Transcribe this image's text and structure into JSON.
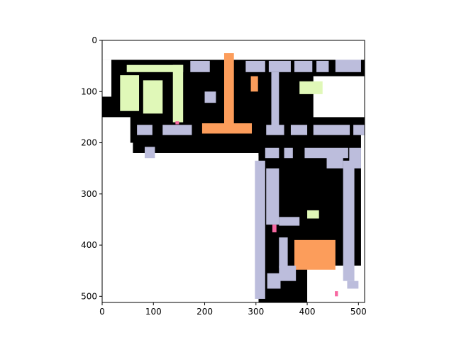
{
  "chart_data": {
    "type": "heatmap",
    "title": "",
    "xlabel": "",
    "ylabel": "",
    "xlim": [
      0,
      512
    ],
    "ylim": [
      512,
      0
    ],
    "xticks": [
      0,
      100,
      200,
      300,
      400,
      500
    ],
    "yticks": [
      0,
      100,
      200,
      300,
      400,
      500
    ],
    "xtick_labels": [
      "0",
      "100",
      "200",
      "300",
      "400",
      "500"
    ],
    "ytick_labels": [
      "0",
      "100",
      "200",
      "300",
      "400",
      "500"
    ],
    "grid": false,
    "legend": "none",
    "colors": {
      "background": "#ffffff",
      "free_space": "#000000",
      "lavender": "#bcbddc",
      "orange": "#fc9d5b",
      "light_green": "#e0f8b8",
      "pink": "#f768a1"
    },
    "regions": [
      {
        "kind": "free_space",
        "x0": 0,
        "y0": 28,
        "x1": 512,
        "y1": 200
      },
      {
        "kind": "free_space",
        "x0": 60,
        "y0": 180,
        "x1": 310,
        "y1": 225
      },
      {
        "kind": "free_space",
        "x0": 305,
        "y0": 180,
        "x1": 512,
        "y1": 512
      },
      {
        "kind": "white",
        "x0": 0,
        "y0": 0,
        "x1": 512,
        "y1": 38
      },
      {
        "kind": "white",
        "x0": 0,
        "y0": 38,
        "x1": 18,
        "y1": 110
      },
      {
        "kind": "white",
        "x0": 0,
        "y0": 150,
        "x1": 55,
        "y1": 512
      },
      {
        "kind": "white",
        "x0": 55,
        "y0": 220,
        "x1": 305,
        "y1": 512
      },
      {
        "kind": "white",
        "x0": 412,
        "y0": 70,
        "x1": 512,
        "y1": 150
      },
      {
        "kind": "white",
        "x0": 400,
        "y0": 440,
        "x1": 512,
        "y1": 512
      },
      {
        "kind": "white",
        "x0": 505,
        "y0": 185,
        "x1": 512,
        "y1": 512
      },
      {
        "kind": "light_green",
        "x0": 48,
        "y0": 48,
        "x1": 158,
        "y1": 62
      },
      {
        "kind": "light_green",
        "x0": 138,
        "y0": 48,
        "x1": 158,
        "y1": 160
      },
      {
        "kind": "light_green",
        "x0": 35,
        "y0": 68,
        "x1": 72,
        "y1": 138
      },
      {
        "kind": "light_green",
        "x0": 80,
        "y0": 78,
        "x1": 118,
        "y1": 143
      },
      {
        "kind": "light_green",
        "x0": 385,
        "y0": 80,
        "x1": 430,
        "y1": 105
      },
      {
        "kind": "light_green",
        "x0": 400,
        "y0": 332,
        "x1": 423,
        "y1": 348
      },
      {
        "kind": "orange",
        "x0": 238,
        "y0": 25,
        "x1": 257,
        "y1": 180
      },
      {
        "kind": "orange",
        "x0": 195,
        "y0": 162,
        "x1": 292,
        "y1": 182
      },
      {
        "kind": "orange",
        "x0": 290,
        "y0": 70,
        "x1": 304,
        "y1": 100
      },
      {
        "kind": "orange",
        "x0": 375,
        "y0": 390,
        "x1": 455,
        "y1": 448
      },
      {
        "kind": "lavender",
        "x0": 172,
        "y0": 40,
        "x1": 210,
        "y1": 62
      },
      {
        "kind": "lavender",
        "x0": 280,
        "y0": 40,
        "x1": 318,
        "y1": 62
      },
      {
        "kind": "lavender",
        "x0": 325,
        "y0": 40,
        "x1": 368,
        "y1": 62
      },
      {
        "kind": "lavender",
        "x0": 375,
        "y0": 40,
        "x1": 410,
        "y1": 62
      },
      {
        "kind": "lavender",
        "x0": 418,
        "y0": 40,
        "x1": 442,
        "y1": 62
      },
      {
        "kind": "lavender",
        "x0": 455,
        "y0": 38,
        "x1": 505,
        "y1": 62
      },
      {
        "kind": "lavender",
        "x0": 330,
        "y0": 62,
        "x1": 345,
        "y1": 170
      },
      {
        "kind": "lavender",
        "x0": 200,
        "y0": 100,
        "x1": 222,
        "y1": 122
      },
      {
        "kind": "lavender",
        "x0": 68,
        "y0": 165,
        "x1": 98,
        "y1": 185
      },
      {
        "kind": "lavender",
        "x0": 118,
        "y0": 165,
        "x1": 175,
        "y1": 185
      },
      {
        "kind": "lavender",
        "x0": 320,
        "y0": 165,
        "x1": 355,
        "y1": 185
      },
      {
        "kind": "lavender",
        "x0": 368,
        "y0": 165,
        "x1": 400,
        "y1": 185
      },
      {
        "kind": "lavender",
        "x0": 412,
        "y0": 165,
        "x1": 483,
        "y1": 185
      },
      {
        "kind": "lavender",
        "x0": 490,
        "y0": 165,
        "x1": 512,
        "y1": 185
      },
      {
        "kind": "lavender",
        "x0": 83,
        "y0": 208,
        "x1": 103,
        "y1": 230
      },
      {
        "kind": "lavender",
        "x0": 318,
        "y0": 210,
        "x1": 345,
        "y1": 230
      },
      {
        "kind": "lavender",
        "x0": 355,
        "y0": 210,
        "x1": 372,
        "y1": 230
      },
      {
        "kind": "lavender",
        "x0": 395,
        "y0": 210,
        "x1": 480,
        "y1": 230
      },
      {
        "kind": "lavender",
        "x0": 438,
        "y0": 222,
        "x1": 470,
        "y1": 250
      },
      {
        "kind": "lavender",
        "x0": 482,
        "y0": 210,
        "x1": 505,
        "y1": 250
      },
      {
        "kind": "lavender",
        "x0": 298,
        "y0": 235,
        "x1": 318,
        "y1": 505
      },
      {
        "kind": "lavender",
        "x0": 320,
        "y0": 250,
        "x1": 345,
        "y1": 360
      },
      {
        "kind": "lavender",
        "x0": 345,
        "y0": 345,
        "x1": 385,
        "y1": 362
      },
      {
        "kind": "lavender",
        "x0": 345,
        "y0": 385,
        "x1": 362,
        "y1": 445
      },
      {
        "kind": "lavender",
        "x0": 322,
        "y0": 455,
        "x1": 348,
        "y1": 485
      },
      {
        "kind": "lavender",
        "x0": 345,
        "y0": 440,
        "x1": 378,
        "y1": 470
      },
      {
        "kind": "lavender",
        "x0": 470,
        "y0": 235,
        "x1": 492,
        "y1": 470
      },
      {
        "kind": "lavender",
        "x0": 478,
        "y0": 470,
        "x1": 500,
        "y1": 485
      },
      {
        "kind": "pink",
        "x0": 332,
        "y0": 360,
        "x1": 340,
        "y1": 375
      },
      {
        "kind": "pink",
        "x0": 454,
        "y0": 490,
        "x1": 460,
        "y1": 500
      },
      {
        "kind": "pink",
        "x0": 143,
        "y0": 158,
        "x1": 150,
        "y1": 164
      }
    ]
  }
}
